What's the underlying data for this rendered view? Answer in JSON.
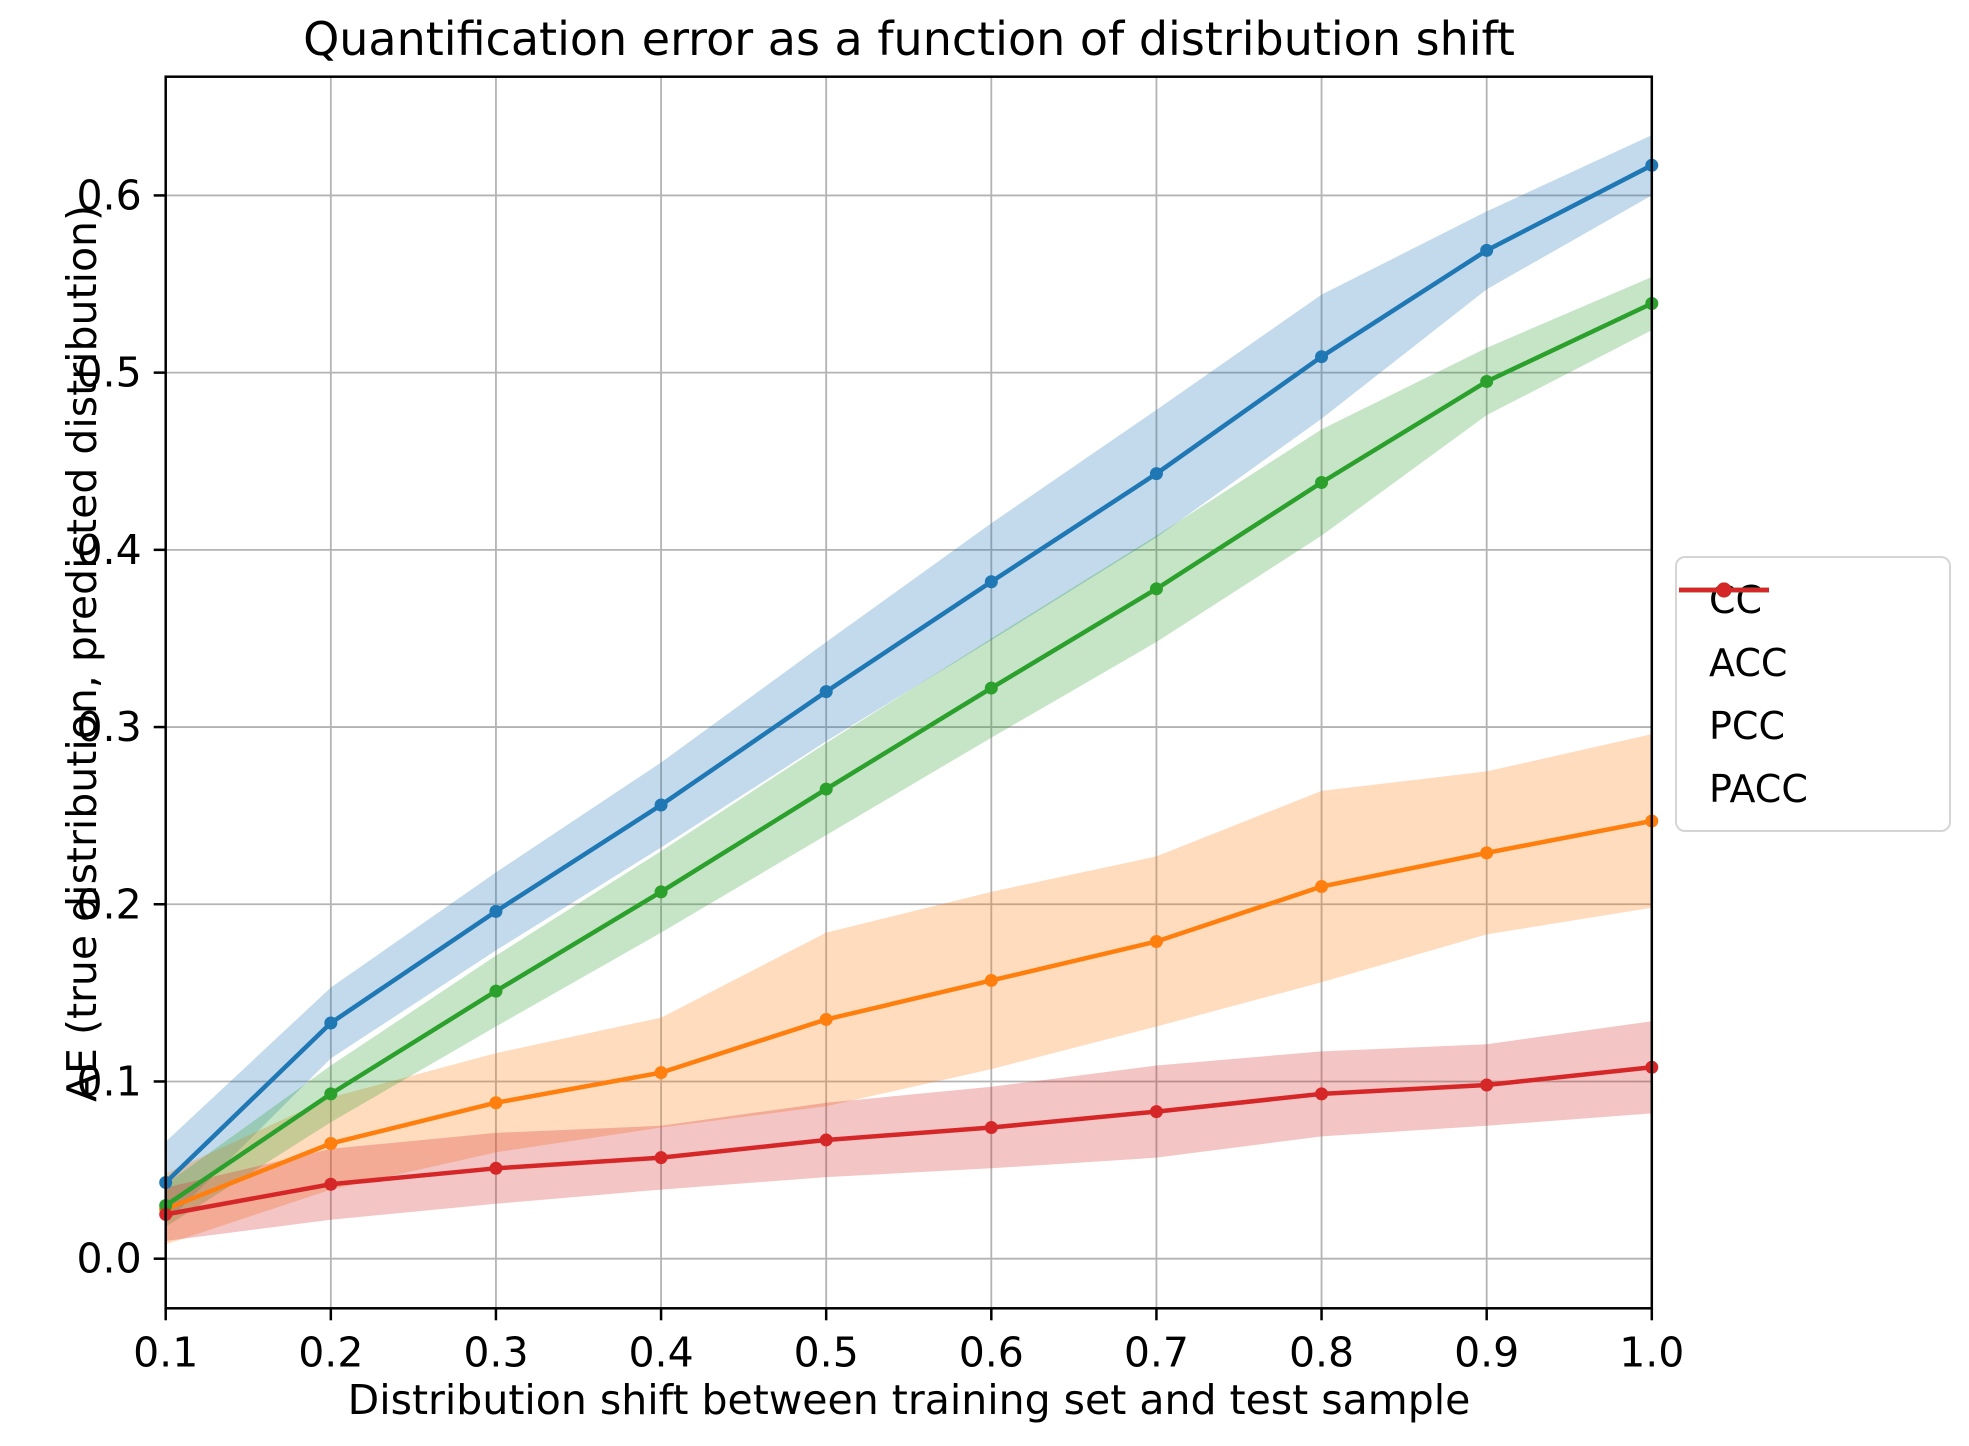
{
  "page": {
    "background": "#ffffff"
  },
  "chart_data": {
    "type": "line",
    "title": "Quantification error as a function of distribution shift",
    "xlabel": "Distribution shift between training set and test sample",
    "ylabel": "AE (true distribution, predicted distribution)",
    "x": [
      0.1,
      0.2,
      0.3,
      0.4,
      0.5,
      0.6,
      0.7,
      0.8,
      0.9,
      1.0
    ],
    "xtick_labels": [
      "0.1",
      "0.2",
      "0.3",
      "0.4",
      "0.5",
      "0.6",
      "0.7",
      "0.8",
      "0.9",
      "1.0"
    ],
    "ytick_values": [
      0.0,
      0.1,
      0.2,
      0.3,
      0.4,
      0.5,
      0.6
    ],
    "ytick_labels": [
      "0.0",
      "0.1",
      "0.2",
      "0.3",
      "0.4",
      "0.5",
      "0.6"
    ],
    "xlim": [
      0.1,
      1.0
    ],
    "ylim": [
      -0.028,
      0.667
    ],
    "grid": true,
    "grid_color": "#b3b3b3",
    "spine_color": "#000000",
    "band_opacity": 0.27,
    "line_width": 4.5,
    "marker_radius": 6.5,
    "legend": {
      "position": "right-outside",
      "entries": [
        "CC",
        "ACC",
        "PCC",
        "PACC"
      ]
    },
    "series": [
      {
        "name": "CC",
        "color": "#1f77b4",
        "values": [
          0.043,
          0.133,
          0.196,
          0.256,
          0.32,
          0.382,
          0.443,
          0.509,
          0.569,
          0.617
        ],
        "band_half_width": [
          0.023,
          0.02,
          0.022,
          0.024,
          0.028,
          0.033,
          0.036,
          0.035,
          0.022,
          0.017
        ]
      },
      {
        "name": "ACC",
        "color": "#ff7f0e",
        "values": [
          0.028,
          0.065,
          0.088,
          0.105,
          0.135,
          0.157,
          0.179,
          0.21,
          0.229,
          0.247
        ],
        "band_half_width": [
          0.02,
          0.026,
          0.028,
          0.031,
          0.049,
          0.05,
          0.048,
          0.054,
          0.046,
          0.049
        ]
      },
      {
        "name": "PCC",
        "color": "#2ca02c",
        "values": [
          0.03,
          0.093,
          0.151,
          0.207,
          0.265,
          0.322,
          0.378,
          0.438,
          0.495,
          0.539
        ],
        "band_half_width": [
          0.012,
          0.016,
          0.02,
          0.023,
          0.026,
          0.028,
          0.03,
          0.03,
          0.019,
          0.015
        ]
      },
      {
        "name": "PACC",
        "color": "#d62728",
        "values": [
          0.025,
          0.042,
          0.051,
          0.057,
          0.067,
          0.074,
          0.083,
          0.093,
          0.098,
          0.108
        ],
        "band_half_width": [
          0.015,
          0.02,
          0.02,
          0.018,
          0.021,
          0.023,
          0.026,
          0.024,
          0.023,
          0.026
        ]
      }
    ]
  }
}
